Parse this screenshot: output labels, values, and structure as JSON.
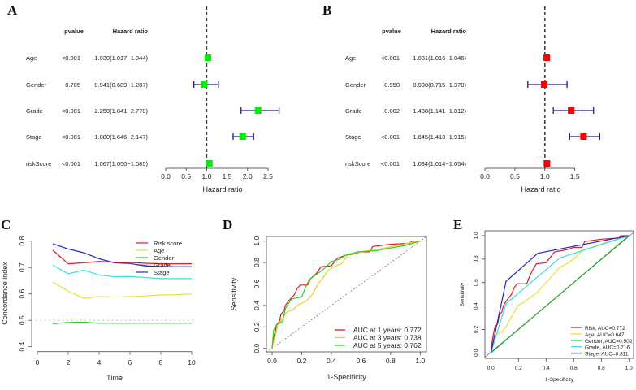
{
  "chart_data": [
    {
      "panel": "A",
      "type": "forest",
      "col_headers": {
        "pvalue": "pvalue",
        "hr": "Hazard ratio"
      },
      "xlabel": "Hazard ratio",
      "ticks": [
        "0.0",
        "0.5",
        "1.0",
        "1.5",
        "2.0",
        "2.5"
      ],
      "reference": 1.0,
      "marker_color": "#00ee00",
      "rows": [
        {
          "name": "Age",
          "pvalue": "<0.001",
          "hr_text": "1.030(1.017−1.044)",
          "hr": 1.03,
          "lo": 1.017,
          "hi": 1.044
        },
        {
          "name": "Gender",
          "pvalue": "0.705",
          "hr_text": "0.941(0.689−1.287)",
          "hr": 0.941,
          "lo": 0.689,
          "hi": 1.287
        },
        {
          "name": "Grade",
          "pvalue": "<0.001",
          "hr_text": "2.258(1.841−2.770)",
          "hr": 2.258,
          "lo": 1.841,
          "hi": 2.77
        },
        {
          "name": "Stage",
          "pvalue": "<0.001",
          "hr_text": "1.880(1.646−2.147)",
          "hr": 1.88,
          "lo": 1.646,
          "hi": 2.147
        },
        {
          "name": "riskScore",
          "pvalue": "<0.001",
          "hr_text": "1.067(1.050−1.085)",
          "hr": 1.067,
          "lo": 1.05,
          "hi": 1.085
        }
      ]
    },
    {
      "panel": "B",
      "type": "forest",
      "col_headers": {
        "pvalue": "pvalue",
        "hr": "Hazard ratio"
      },
      "xlabel": "Hazard ratio",
      "ticks": [
        "0.0",
        "0.5",
        "1.0",
        "1.5"
      ],
      "reference": 1.0,
      "marker_color": "#ff0000",
      "rows": [
        {
          "name": "Age",
          "pvalue": "<0.001",
          "hr_text": "1.031(1.016−1.046)",
          "hr": 1.031,
          "lo": 1.016,
          "hi": 1.046
        },
        {
          "name": "Gender",
          "pvalue": "0.950",
          "hr_text": "0.990(0.715−1.370)",
          "hr": 0.99,
          "lo": 0.715,
          "hi": 1.37
        },
        {
          "name": "Grade",
          "pvalue": "0.002",
          "hr_text": "1.438(1.141−1.812)",
          "hr": 1.438,
          "lo": 1.141,
          "hi": 1.812
        },
        {
          "name": "Stage",
          "pvalue": "<0.001",
          "hr_text": "1.645(1.413−1.915)",
          "hr": 1.645,
          "lo": 1.413,
          "hi": 1.915
        },
        {
          "name": "riskScore",
          "pvalue": "<0.001",
          "hr_text": "1.034(1.014−1.054)",
          "hr": 1.034,
          "lo": 1.014,
          "hi": 1.054
        }
      ]
    },
    {
      "panel": "C",
      "type": "line",
      "xlabel": "Time",
      "ylabel": "Concordance index",
      "xticks": [
        "0",
        "2",
        "4",
        "6",
        "8",
        "10"
      ],
      "yticks": [
        "0.4",
        "0.5",
        "0.6",
        "0.7",
        "0.8"
      ],
      "xlim": [
        0,
        10
      ],
      "ylim": [
        0.4,
        0.8
      ],
      "reference": 0.5,
      "x": [
        1,
        2,
        3,
        4,
        5,
        6,
        7,
        8,
        9,
        10
      ],
      "legend_position": "top-right",
      "series": [
        {
          "name": "Risk score",
          "color": "#e41a1c",
          "values": [
            0.766,
            0.714,
            0.718,
            0.723,
            0.72,
            0.719,
            0.716,
            0.714,
            0.714,
            0.714
          ]
        },
        {
          "name": "Age",
          "color": "#e8e03a",
          "values": [
            0.645,
            0.611,
            0.583,
            0.59,
            0.588,
            0.59,
            0.592,
            0.596,
            0.597,
            0.6
          ]
        },
        {
          "name": "Gender",
          "color": "#22cc22",
          "values": [
            0.487,
            0.492,
            0.493,
            0.489,
            0.489,
            0.489,
            0.489,
            0.489,
            0.489,
            0.489
          ]
        },
        {
          "name": "Grade",
          "color": "#33e0e0",
          "values": [
            0.709,
            0.676,
            0.69,
            0.672,
            0.665,
            0.666,
            0.662,
            0.658,
            0.658,
            0.658
          ]
        },
        {
          "name": "Stage",
          "color": "#2222cc",
          "values": [
            0.79,
            0.77,
            0.756,
            0.733,
            0.718,
            0.715,
            0.706,
            0.704,
            0.703,
            0.703
          ]
        }
      ]
    },
    {
      "panel": "D",
      "type": "line",
      "xlabel": "1-Specificity",
      "ylabel": "Sensitivity",
      "ticks": [
        "0.0",
        "0.2",
        "0.4",
        "0.6",
        "0.8",
        "1.0"
      ],
      "xlim": [
        0,
        1
      ],
      "ylim": [
        0,
        1
      ],
      "legend_position": "bottom-right",
      "series": [
        {
          "name": "AUC at 1 years: 0.772",
          "color": "#e41a1c",
          "points": [
            [
              0,
              0
            ],
            [
              0.01,
              0.1
            ],
            [
              0.02,
              0.15
            ],
            [
              0.03,
              0.22
            ],
            [
              0.05,
              0.25
            ],
            [
              0.06,
              0.32
            ],
            [
              0.08,
              0.35
            ],
            [
              0.09,
              0.4
            ],
            [
              0.11,
              0.44
            ],
            [
              0.13,
              0.47
            ],
            [
              0.15,
              0.5
            ],
            [
              0.17,
              0.56
            ],
            [
              0.19,
              0.59
            ],
            [
              0.24,
              0.59
            ],
            [
              0.26,
              0.65
            ],
            [
              0.3,
              0.7
            ],
            [
              0.33,
              0.76
            ],
            [
              0.4,
              0.77
            ],
            [
              0.44,
              0.84
            ],
            [
              0.5,
              0.87
            ],
            [
              0.55,
              0.88
            ],
            [
              0.6,
              0.9
            ],
            [
              0.66,
              0.9
            ],
            [
              0.68,
              0.95
            ],
            [
              0.8,
              0.97
            ],
            [
              0.93,
              0.98
            ],
            [
              0.94,
              1
            ],
            [
              1,
              1
            ]
          ]
        },
        {
          "name": "AUC at 3 years: 0.738",
          "color": "#e8d020",
          "points": [
            [
              0,
              0
            ],
            [
              0.02,
              0.12
            ],
            [
              0.04,
              0.22
            ],
            [
              0.08,
              0.3
            ],
            [
              0.1,
              0.34
            ],
            [
              0.14,
              0.36
            ],
            [
              0.18,
              0.41
            ],
            [
              0.23,
              0.44
            ],
            [
              0.27,
              0.5
            ],
            [
              0.31,
              0.6
            ],
            [
              0.35,
              0.67
            ],
            [
              0.38,
              0.73
            ],
            [
              0.42,
              0.76
            ],
            [
              0.47,
              0.79
            ],
            [
              0.52,
              0.88
            ],
            [
              0.6,
              0.9
            ],
            [
              0.7,
              0.92
            ],
            [
              0.85,
              0.96
            ],
            [
              0.95,
              0.99
            ],
            [
              1,
              1
            ]
          ]
        },
        {
          "name": "AUC at 5 years: 0.762",
          "color": "#22dd22",
          "points": [
            [
              0,
              0
            ],
            [
              0.01,
              0.17
            ],
            [
              0.03,
              0.22
            ],
            [
              0.07,
              0.25
            ],
            [
              0.09,
              0.37
            ],
            [
              0.13,
              0.46
            ],
            [
              0.2,
              0.48
            ],
            [
              0.22,
              0.55
            ],
            [
              0.25,
              0.64
            ],
            [
              0.3,
              0.69
            ],
            [
              0.35,
              0.74
            ],
            [
              0.4,
              0.81
            ],
            [
              0.45,
              0.83
            ],
            [
              0.5,
              0.87
            ],
            [
              0.58,
              0.9
            ],
            [
              0.7,
              0.91
            ],
            [
              0.9,
              0.96
            ],
            [
              1,
              1
            ]
          ]
        }
      ]
    },
    {
      "panel": "E",
      "type": "line",
      "xlabel": "1-Specificity",
      "ylabel": "Sensitivity",
      "ticks": [
        "0.0",
        "0.2",
        "0.4",
        "0.6",
        "0.8",
        "1.0"
      ],
      "xlim": [
        0,
        1
      ],
      "ylim": [
        0,
        1
      ],
      "legend_position": "bottom-right",
      "series": [
        {
          "name": "Risk, AUC=0.772",
          "color": "#e41a1c",
          "points": [
            [
              0,
              0
            ],
            [
              0.01,
              0.1
            ],
            [
              0.02,
              0.17
            ],
            [
              0.03,
              0.22
            ],
            [
              0.05,
              0.25
            ],
            [
              0.06,
              0.32
            ],
            [
              0.08,
              0.35
            ],
            [
              0.09,
              0.4
            ],
            [
              0.11,
              0.44
            ],
            [
              0.13,
              0.47
            ],
            [
              0.15,
              0.5
            ],
            [
              0.17,
              0.56
            ],
            [
              0.19,
              0.59
            ],
            [
              0.26,
              0.59
            ],
            [
              0.28,
              0.65
            ],
            [
              0.3,
              0.7
            ],
            [
              0.33,
              0.76
            ],
            [
              0.4,
              0.77
            ],
            [
              0.46,
              0.86
            ],
            [
              0.5,
              0.87
            ],
            [
              0.55,
              0.88
            ],
            [
              0.6,
              0.9
            ],
            [
              0.66,
              0.9
            ],
            [
              0.68,
              0.95
            ],
            [
              0.8,
              0.97
            ],
            [
              0.93,
              0.98
            ],
            [
              0.94,
              1
            ],
            [
              1,
              1
            ]
          ]
        },
        {
          "name": "Age, AUC=0.647",
          "color": "#e8e03a",
          "points": [
            [
              0,
              0
            ],
            [
              0.04,
              0.16
            ],
            [
              0.07,
              0.17
            ],
            [
              0.11,
              0.22
            ],
            [
              0.16,
              0.33
            ],
            [
              0.2,
              0.41
            ],
            [
              0.24,
              0.43
            ],
            [
              0.28,
              0.47
            ],
            [
              0.33,
              0.51
            ],
            [
              0.4,
              0.6
            ],
            [
              0.5,
              0.73
            ],
            [
              0.55,
              0.76
            ],
            [
              0.6,
              0.8
            ],
            [
              0.66,
              0.87
            ],
            [
              0.8,
              0.93
            ],
            [
              1,
              1
            ]
          ]
        },
        {
          "name": "Gender, AUC=0.502",
          "color": "#22aa22",
          "points": [
            [
              0,
              0
            ],
            [
              1,
              1
            ]
          ]
        },
        {
          "name": "Grade, AUC=0.716",
          "color": "#33e0e0",
          "points": [
            [
              0,
              0
            ],
            [
              0.11,
              0.42
            ],
            [
              0.5,
              0.81
            ],
            [
              1,
              1
            ]
          ]
        },
        {
          "name": "Stage, AUC=0.811",
          "color": "#2222cc",
          "points": [
            [
              0,
              0
            ],
            [
              0.11,
              0.61
            ],
            [
              0.34,
              0.85
            ],
            [
              1,
              1
            ]
          ]
        }
      ]
    }
  ]
}
